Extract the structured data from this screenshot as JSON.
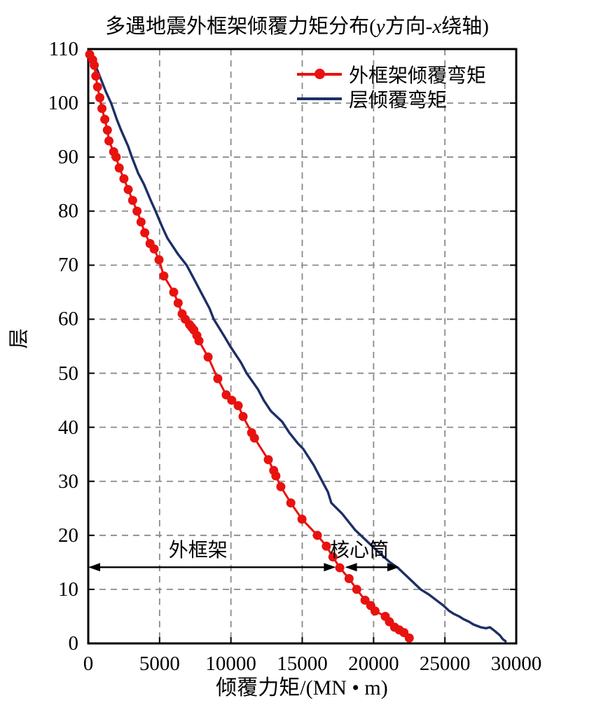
{
  "title_parts": {
    "prefix": "多遇地震外框架倾覆力矩分布(",
    "var1": "y",
    "mid": "方向-",
    "var2": "x",
    "suffix": "绕轴)"
  },
  "chart_data": {
    "type": "line",
    "title": "多遇地震外框架倾覆力矩分布(y方向-x绕轴)",
    "xlabel": "倾覆力矩/(MN • m)",
    "ylabel": "层",
    "xlim": [
      0,
      30000
    ],
    "ylim": [
      0,
      110
    ],
    "x_ticks": [
      0,
      5000,
      10000,
      15000,
      20000,
      25000,
      30000
    ],
    "y_ticks": [
      0,
      10,
      20,
      30,
      40,
      50,
      60,
      70,
      80,
      90,
      100,
      110
    ],
    "grid": true,
    "grid_color": "#8a8a8a",
    "frame_color": "#000000",
    "legend_position": "top-right-inside",
    "series": [
      {
        "name": "外框架倾覆弯矩",
        "color": "#e8120f",
        "marker": "circle",
        "note": "points are [overturning_moment_MN_m, floor]",
        "points": [
          [
            100,
            109
          ],
          [
            310,
            108
          ],
          [
            420,
            107
          ],
          [
            530,
            105
          ],
          [
            650,
            103
          ],
          [
            810,
            101
          ],
          [
            960,
            99
          ],
          [
            1160,
            97
          ],
          [
            1340,
            95
          ],
          [
            1450,
            93
          ],
          [
            1780,
            91
          ],
          [
            1960,
            90
          ],
          [
            2170,
            88
          ],
          [
            2500,
            86
          ],
          [
            2800,
            84
          ],
          [
            3110,
            82
          ],
          [
            3420,
            80
          ],
          [
            3700,
            78
          ],
          [
            3960,
            76
          ],
          [
            4330,
            74
          ],
          [
            4620,
            73
          ],
          [
            4960,
            71
          ],
          [
            5300,
            68
          ],
          [
            5990,
            65
          ],
          [
            6300,
            63
          ],
          [
            6580,
            61
          ],
          [
            6800,
            60
          ],
          [
            7100,
            59
          ],
          [
            7250,
            58.5
          ],
          [
            7400,
            58
          ],
          [
            7610,
            57
          ],
          [
            7760,
            56
          ],
          [
            8400,
            53
          ],
          [
            9080,
            49
          ],
          [
            9670,
            46
          ],
          [
            10060,
            45
          ],
          [
            10510,
            44
          ],
          [
            10850,
            42
          ],
          [
            11450,
            39
          ],
          [
            11650,
            38
          ],
          [
            12620,
            34
          ],
          [
            13000,
            32
          ],
          [
            13150,
            31
          ],
          [
            13500,
            29
          ],
          [
            14200,
            26
          ],
          [
            14980,
            23
          ],
          [
            16060,
            20
          ],
          [
            16690,
            18
          ],
          [
            17150,
            16
          ],
          [
            17630,
            14
          ],
          [
            18280,
            12
          ],
          [
            18820,
            10
          ],
          [
            19400,
            8
          ],
          [
            19800,
            7
          ],
          [
            20100,
            6
          ],
          [
            20820,
            5
          ],
          [
            21110,
            4
          ],
          [
            21470,
            3
          ],
          [
            21800,
            2.5
          ],
          [
            22130,
            2
          ],
          [
            22500,
            1
          ]
        ]
      },
      {
        "name": "层倾覆弯矩",
        "color": "#1c2f66",
        "marker": "none",
        "note": "points are [overturning_moment_MN_m, floor]",
        "points": [
          [
            250,
            109
          ],
          [
            500,
            107
          ],
          [
            800,
            105
          ],
          [
            1250,
            102
          ],
          [
            1600,
            100
          ],
          [
            2000,
            97
          ],
          [
            2300,
            95
          ],
          [
            2800,
            92
          ],
          [
            3060,
            90
          ],
          [
            3500,
            87
          ],
          [
            3900,
            85
          ],
          [
            4380,
            82
          ],
          [
            4720,
            80
          ],
          [
            5200,
            77
          ],
          [
            5550,
            75
          ],
          [
            6300,
            72
          ],
          [
            6900,
            70
          ],
          [
            7500,
            67
          ],
          [
            7900,
            65
          ],
          [
            8500,
            62
          ],
          [
            8800,
            60
          ],
          [
            9500,
            57
          ],
          [
            9950,
            55
          ],
          [
            10700,
            52
          ],
          [
            11100,
            50
          ],
          [
            11900,
            47
          ],
          [
            12300,
            45
          ],
          [
            12800,
            43
          ],
          [
            13600,
            41
          ],
          [
            14090,
            39
          ],
          [
            14700,
            37
          ],
          [
            15070,
            36
          ],
          [
            15800,
            33
          ],
          [
            16400,
            30
          ],
          [
            16800,
            28
          ],
          [
            17040,
            26
          ],
          [
            17800,
            24
          ],
          [
            18700,
            21
          ],
          [
            19500,
            19
          ],
          [
            20300,
            17
          ],
          [
            21150,
            15
          ],
          [
            21700,
            14
          ],
          [
            22500,
            12
          ],
          [
            23300,
            10
          ],
          [
            23900,
            9
          ],
          [
            24400,
            8
          ],
          [
            24900,
            7
          ],
          [
            25300,
            6
          ],
          [
            25600,
            5.5
          ],
          [
            26000,
            5
          ],
          [
            26300,
            4.5
          ],
          [
            26700,
            4
          ],
          [
            27000,
            3.5
          ],
          [
            27500,
            3
          ],
          [
            27900,
            2.8
          ],
          [
            28150,
            3.0
          ],
          [
            28500,
            2.3
          ],
          [
            28850,
            1.5
          ],
          [
            29050,
            0.8
          ],
          [
            29250,
            0.4
          ]
        ]
      }
    ],
    "annotations": [
      {
        "label": "外框架",
        "arrow_from_x": 0,
        "arrow_to_x": 17350,
        "arrow_floor": 14.1,
        "label_center_x": 7700
      },
      {
        "label": "核心筒",
        "arrow_from_x": 18000,
        "arrow_to_x": 21800,
        "arrow_floor": 14.1,
        "label_center_x": 19000
      }
    ]
  },
  "colors": {
    "outer_frame_series": "#e8120f",
    "story_series": "#1c2f66",
    "grid": "#8a8a8a",
    "frame": "#000000",
    "text": "#000000",
    "arrow": "#000000"
  }
}
